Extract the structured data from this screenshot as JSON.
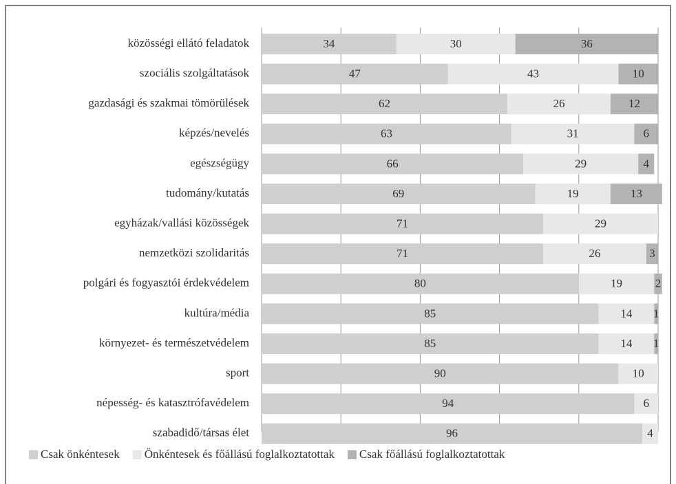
{
  "chart_data": {
    "type": "stacked-bar",
    "orientation": "horizontal",
    "categories": [
      "közösségi ellátó feladatok",
      "szociális szolgáltatások",
      "gazdasági és szakmai tömörülések",
      "képzés/nevelés",
      "egészségügy",
      "tudomány/kutatás",
      "egyházak/vallási közösségek",
      "nemzetközi szolidaritás",
      "polgári és fogyasztói érdekvédelem",
      "kultúra/média",
      "környezet- és természetvédelem",
      "sport",
      "népesség- és katasztrófavédelem",
      "szabadidő/társas élet"
    ],
    "series": [
      {
        "name": "Csak önkéntesek",
        "color": "#cfcfcf",
        "values": [
          34,
          47,
          62,
          63,
          66,
          69,
          71,
          71,
          80,
          85,
          85,
          90,
          94,
          96
        ]
      },
      {
        "name": "Önkéntesek és főállású foglalkoztatottak",
        "color": "#e8e8e8",
        "values": [
          30,
          43,
          26,
          31,
          29,
          19,
          29,
          26,
          19,
          14,
          14,
          10,
          6,
          4
        ]
      },
      {
        "name": "Csak főállású foglalkoztatottak",
        "color": "#b3b3b3",
        "values": [
          36,
          10,
          12,
          6,
          4,
          13,
          null,
          3,
          2,
          1,
          1,
          null,
          null,
          null
        ]
      }
    ],
    "xlim": [
      0,
      100
    ],
    "xticks": [
      0,
      20,
      40,
      60,
      80,
      100
    ],
    "grid": true,
    "legend": "bottom"
  }
}
